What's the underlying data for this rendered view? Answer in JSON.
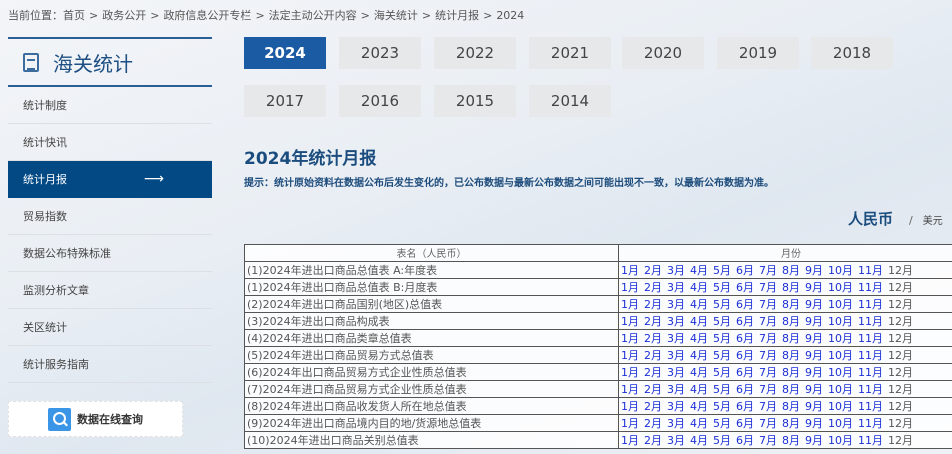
{
  "breadcrumb": [
    "当前位置：首页",
    ">",
    "政务公开",
    ">",
    "政府信息公开专栏",
    ">",
    "法定主动公开内容",
    ">",
    "海关统计",
    ">",
    "统计月报",
    ">",
    "2024"
  ],
  "sidebar": {
    "title": "海关统计",
    "items": [
      {
        "label": "统计制度"
      },
      {
        "label": "统计快讯"
      },
      {
        "label": "统计月报",
        "active": true
      },
      {
        "label": "贸易指数"
      },
      {
        "label": "数据公布特殊标准"
      },
      {
        "label": "监测分析文章"
      },
      {
        "label": "关区统计"
      },
      {
        "label": "统计服务指南"
      }
    ],
    "active_arrow": "⟶",
    "query_label": "数据在线查询"
  },
  "years": [
    "2024",
    "2023",
    "2022",
    "2021",
    "2020",
    "2019",
    "2018",
    "2017",
    "2016",
    "2015",
    "2014"
  ],
  "active_year": "2024",
  "title": "2024年统计月报",
  "hint": "提示：统计原始资料在数据公布后发生变化的，已公布数据与最新公布数据之间可能出现不一致，以最新公布数据为准。",
  "currency": {
    "active": "人民币",
    "sep": "/",
    "other": "美元"
  },
  "table": {
    "headers": [
      "表名（人民币）",
      "月份"
    ],
    "months": [
      "1月",
      "2月",
      "3月",
      "4月",
      "5月",
      "6月",
      "7月",
      "8月",
      "9月",
      "10月",
      "11月",
      "12月"
    ],
    "available_months": 11,
    "rows": [
      "(1)2024年进出口商品总值表 A:年度表",
      "(1)2024年进出口商品总值表 B:月度表",
      "(2)2024年进出口商品国别(地区)总值表",
      "(3)2024年进出口商品构成表",
      "(4)2024年进出口商品类章总值表",
      "(5)2024年进出口商品贸易方式总值表",
      "(6)2024年出口商品贸易方式企业性质总值表",
      "(7)2024年进口商品贸易方式企业性质总值表",
      "(8)2024年进出口商品收发货人所在地总值表",
      "(9)2024年进出口商品境内目的地/货源地总值表",
      "(10)2024年进出口商品关别总值表"
    ]
  },
  "colors": {
    "primary": "#034a85",
    "active_tab": "#1b5ba3",
    "link": "#1b2fd6"
  }
}
